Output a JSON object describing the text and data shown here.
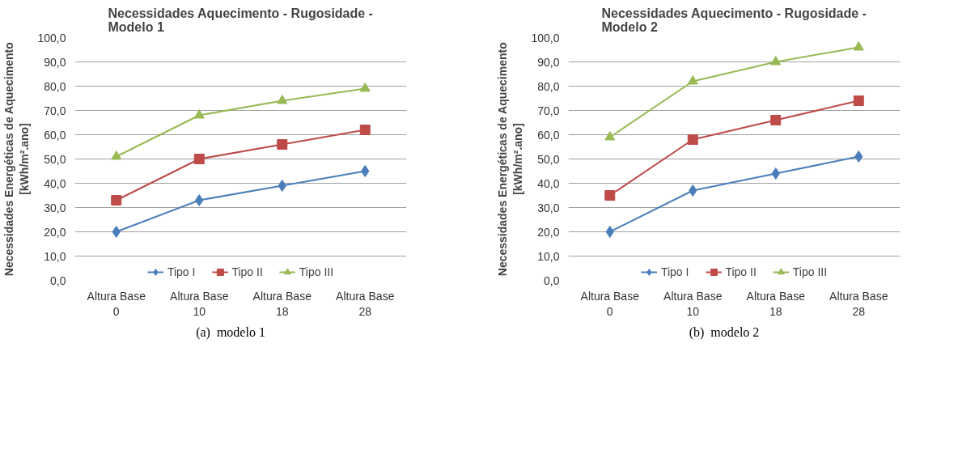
{
  "chart_data": [
    {
      "type": "line",
      "title": "Necessidades Aquecimento - Rugosidade - Modelo  1",
      "ylabel": "Necessidades Energéticas de Aquecimento [kWh/m².ano]",
      "categories": [
        "Altura Base 0",
        "Altura Base 10",
        "Altura Base 18",
        "Altura Base 28"
      ],
      "series": [
        {
          "name": "Tipo I",
          "color": "#4a7ebb",
          "marker": "diamond",
          "values": [
            20,
            33,
            39,
            45
          ]
        },
        {
          "name": "Tipo II",
          "color": "#be4b48",
          "marker": "square",
          "values": [
            33,
            50,
            56,
            62
          ]
        },
        {
          "name": "Tipo III",
          "color": "#98b954",
          "marker": "triangle",
          "values": [
            51,
            68,
            74,
            79
          ]
        }
      ],
      "ylim": [
        0,
        100
      ],
      "yticks": [
        {
          "value": 0,
          "label": "0,0"
        },
        {
          "value": 10,
          "label": "10,0"
        },
        {
          "value": 20,
          "label": "20,0"
        },
        {
          "value": 30,
          "label": "30,0"
        },
        {
          "value": 40,
          "label": "40,0"
        },
        {
          "value": 50,
          "label": "50,0"
        },
        {
          "value": 60,
          "label": "60,0"
        },
        {
          "value": 70,
          "label": "70,0"
        },
        {
          "value": 80,
          "label": "80,0"
        },
        {
          "value": 90,
          "label": "90,0"
        },
        {
          "value": 100,
          "label": "100,0"
        }
      ],
      "grid": "y",
      "legend": "bottom",
      "annotations": [
        "(a)  modelo 1"
      ]
    },
    {
      "type": "line",
      "title": "Necessidades Aquecimento - Rugosidade - Modelo 2",
      "ylabel": "Necessidades Energéticas de Aquecimento [kWh/m².ano]",
      "categories": [
        "Altura Base 0",
        "Altura Base 10",
        "Altura Base 18",
        "Altura Base 28"
      ],
      "series": [
        {
          "name": "Tipo I",
          "color": "#4a7ebb",
          "marker": "diamond",
          "values": [
            20,
            37,
            44,
            51
          ]
        },
        {
          "name": "Tipo II",
          "color": "#be4b48",
          "marker": "square",
          "values": [
            35,
            58,
            66,
            74
          ]
        },
        {
          "name": "Tipo III",
          "color": "#98b954",
          "marker": "triangle",
          "values": [
            59,
            82,
            90,
            96
          ]
        }
      ],
      "ylim": [
        0,
        100
      ],
      "yticks": [
        {
          "value": 0,
          "label": "0,0"
        },
        {
          "value": 10,
          "label": "10,0"
        },
        {
          "value": 20,
          "label": "20,0"
        },
        {
          "value": 30,
          "label": "30,0"
        },
        {
          "value": 40,
          "label": "40,0"
        },
        {
          "value": 50,
          "label": "50,0"
        },
        {
          "value": 60,
          "label": "60,0"
        },
        {
          "value": 70,
          "label": "70,0"
        },
        {
          "value": 80,
          "label": "80,0"
        },
        {
          "value": 90,
          "label": "90,0"
        },
        {
          "value": 100,
          "label": "100,0"
        }
      ],
      "grid": "y",
      "legend": "bottom",
      "annotations": [
        "(b)  modelo 2"
      ]
    }
  ]
}
